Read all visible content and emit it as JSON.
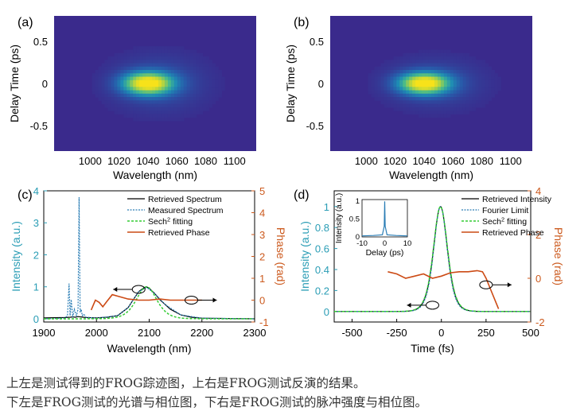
{
  "colors": {
    "spectrum_retrieved": "#000000",
    "spectrum_measured": "#2a7db5",
    "sech_fit": "#33cc33",
    "phase": "#cc4a14",
    "intensity_axis": "#2a9db5",
    "phase_axis": "#cc5a1e",
    "heatmap_background": "#3a2a8c",
    "heatmap_peak": "#f7e21a"
  },
  "caption": {
    "line1": "上左是测试得到的FROG踪迹图，上右是FROG测试反演的结果。",
    "line2": "下左是FROG测试的光谱与相位图，下右是FROG测试的脉冲强度与相位图。"
  },
  "chart_data": [
    {
      "panel": "(a)",
      "type": "heatmap",
      "xlabel": "Wavelength (nm)",
      "ylabel": "Delay Time (ps)",
      "xticks": [
        1000,
        1020,
        1040,
        1060,
        1080,
        1100
      ],
      "yticks": [
        0.5,
        0,
        -0.5
      ],
      "xlim": [
        975,
        1115
      ],
      "ylim": [
        -0.8,
        0.8
      ],
      "peak": {
        "wavelength": 1040,
        "delay": 0
      },
      "spread": {
        "wavelength": 12,
        "delay": 0.09
      },
      "pedestal_span": {
        "wavelength": [
          1010,
          1085
        ],
        "delay": [
          -0.35,
          0.35
        ]
      }
    },
    {
      "panel": "(b)",
      "type": "heatmap",
      "xlabel": "Wavelength (nm)",
      "ylabel": "Delay Time (ps)",
      "xticks": [
        1000,
        1020,
        1040,
        1060,
        1080,
        1100
      ],
      "yticks": [
        0.5,
        0,
        -0.5
      ],
      "xlim": [
        975,
        1115
      ],
      "ylim": [
        -0.8,
        0.8
      ],
      "peak": {
        "wavelength": 1040,
        "delay": 0
      },
      "spread": {
        "wavelength": 12,
        "delay": 0.085
      },
      "pedestal_span": {
        "wavelength": [
          1010,
          1085
        ],
        "delay": [
          -0.3,
          0.3
        ]
      }
    },
    {
      "panel": "(c)",
      "type": "line",
      "xlabel": "Wavelength (nm)",
      "ylabel_left": "Intensity (a.u.)",
      "ylabel_right": "Phase (rad)",
      "xlim": [
        1900,
        2300
      ],
      "xticks": [
        1900,
        2000,
        2100,
        2200,
        2300
      ],
      "ylim_left": [
        -0.1,
        4
      ],
      "yticks_left": [
        0,
        1,
        2,
        3,
        4
      ],
      "ylim_right": [
        -1,
        5
      ],
      "yticks_right": [
        -1,
        0,
        1,
        2,
        3,
        4,
        5
      ],
      "legend": [
        "Retrieved Spectrum",
        "Measured Spectrum",
        "Sech<sup>2</sup> fitting",
        "Retrieved Phase"
      ],
      "series": [
        {
          "name": "Retrieved Spectrum",
          "axis": "left",
          "x": [
            1900,
            1940,
            1950,
            1955,
            1960,
            1965,
            1970,
            1975,
            1980,
            2000,
            2020,
            2040,
            2060,
            2070,
            2080,
            2090,
            2095,
            2100,
            2110,
            2120,
            2140,
            2160,
            2180,
            2200,
            2300
          ],
          "y": [
            0.03,
            0.04,
            0.05,
            0.06,
            0.05,
            0.07,
            0.06,
            0.05,
            0.04,
            0.03,
            0.05,
            0.1,
            0.35,
            0.6,
            0.85,
            0.97,
            1.0,
            0.95,
            0.8,
            0.6,
            0.3,
            0.12,
            0.05,
            0.02,
            0.0
          ]
        },
        {
          "name": "Measured Spectrum",
          "axis": "left",
          "x": [
            1900,
            1940,
            1945,
            1948,
            1950,
            1952,
            1955,
            1958,
            1962,
            1965,
            1967,
            1969,
            1971,
            1973,
            1976,
            1980,
            2000,
            2040,
            2060,
            2080,
            2095,
            2110,
            2130,
            2160,
            2200,
            2300
          ],
          "y": [
            0.0,
            0.02,
            0.1,
            1.1,
            0.1,
            0.6,
            0.05,
            0.3,
            0.1,
            0.3,
            3.8,
            0.2,
            0.3,
            0.1,
            0.15,
            0.05,
            0.02,
            0.1,
            0.35,
            0.85,
            0.98,
            0.8,
            0.45,
            0.12,
            0.02,
            0.0
          ]
        },
        {
          "name": "Sech<sup>2</sup> fitting",
          "axis": "left",
          "center": 2095,
          "width": 26,
          "amplitude": 1.0
        },
        {
          "name": "Retrieved Phase",
          "axis": "right",
          "x": [
            1990,
            1998,
            2005,
            2012,
            2020,
            2030,
            2045,
            2060,
            2080,
            2100,
            2120,
            2140,
            2160,
            2180,
            2200
          ],
          "y": [
            -0.45,
            0.0,
            -0.1,
            -0.3,
            -0.05,
            0.25,
            0.15,
            0.05,
            0.0,
            0.0,
            0.05,
            0.0,
            0.0,
            0.0,
            0.0
          ]
        }
      ]
    },
    {
      "panel": "(d)",
      "type": "line",
      "xlabel": "Time (fs)",
      "ylabel_left": "Intensity (a.u.)",
      "ylabel_right": "Phase (rad)",
      "xlim": [
        -600,
        500
      ],
      "xticks": [
        -500,
        -250,
        0,
        250,
        500
      ],
      "ylim_left": [
        -0.1,
        1.15
      ],
      "yticks_left": [
        0,
        0.2,
        0.4,
        0.6,
        0.8,
        1
      ],
      "ylim_right": [
        -2,
        4
      ],
      "yticks_right": [
        -2,
        0,
        2,
        4
      ],
      "legend": [
        "Retrieved Intensity",
        "Fourier Limit",
        "Sech<sup>2</sup> fitting",
        "Retrieved Phase"
      ],
      "series": [
        {
          "name": "Retrieved Intensity",
          "axis": "left",
          "center": -5,
          "width": 52,
          "amplitude": 1.0
        },
        {
          "name": "Fourier Limit",
          "axis": "left",
          "center": -5,
          "width": 50,
          "amplitude": 1.0
        },
        {
          "name": "Sech<sup>2</sup> fitting",
          "axis": "left",
          "center": -5,
          "width": 53,
          "amplitude": 1.0
        },
        {
          "name": "Retrieved Phase",
          "axis": "right",
          "x": [
            -300,
            -250,
            -200,
            -150,
            -100,
            -50,
            0,
            50,
            100,
            150,
            200,
            230,
            250,
            280,
            320
          ],
          "y": [
            0.3,
            0.2,
            0.0,
            0.1,
            0.2,
            0.0,
            0.1,
            0.25,
            0.3,
            0.3,
            0.35,
            0.3,
            0.0,
            -0.6,
            -1.4
          ]
        }
      ],
      "inset": {
        "xlabel": "Delay (ps)",
        "ylabel": "Intensity (a.u.)",
        "xlim": [
          -10,
          10
        ],
        "xticks": [
          -10,
          0,
          10
        ],
        "ylim": [
          0,
          1.05
        ],
        "yticks": [
          0,
          0.5,
          1
        ],
        "series": [
          {
            "x": [
              -10,
              -5,
              -1,
              -0.2,
              0,
              0.2,
              1,
              5,
              10
            ],
            "y": [
              0.03,
              0.04,
              0.06,
              0.3,
              1.0,
              0.3,
              0.06,
              0.04,
              0.03
            ]
          }
        ]
      }
    }
  ]
}
